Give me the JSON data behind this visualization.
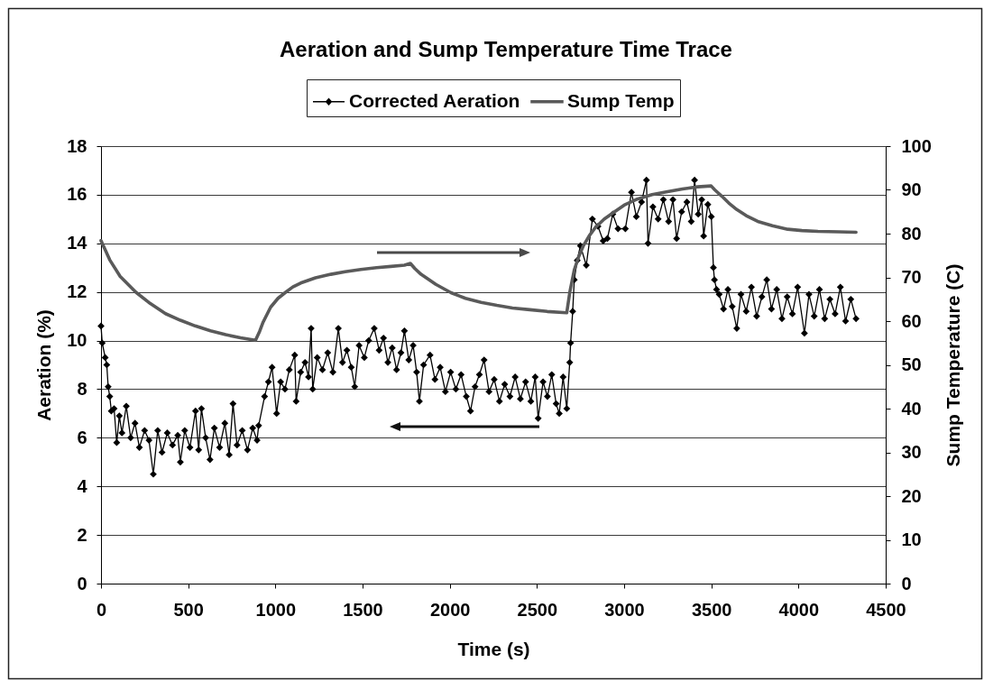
{
  "chart_data": {
    "type": "line",
    "title": "Aeration and Sump Temperature Time Trace",
    "xlabel": "Time (s)",
    "ylabel": "Aeration (%)",
    "y2label": "Sump Temperature (C)",
    "xlim": [
      0,
      4500
    ],
    "xticks": [
      0,
      500,
      1000,
      1500,
      2000,
      2500,
      3000,
      3500,
      4000,
      4500
    ],
    "ylim": [
      0,
      18
    ],
    "yticks": [
      0,
      2,
      4,
      6,
      8,
      10,
      12,
      14,
      16,
      18
    ],
    "y2lim": [
      0,
      100
    ],
    "y2ticks": [
      0,
      10,
      20,
      30,
      40,
      50,
      60,
      70,
      80,
      90,
      100
    ],
    "grid": "y",
    "legend": "top",
    "line_style": "solid",
    "series": [
      {
        "name": "Corrected Aeration",
        "color": "#000000",
        "marker": "diamond",
        "x": [
          0,
          7,
          24,
          33,
          41,
          50,
          59,
          75,
          90,
          105,
          120,
          145,
          170,
          195,
          220,
          250,
          275,
          300,
          325,
          350,
          380,
          410,
          440,
          455,
          480,
          510,
          542,
          560,
          576,
          600,
          625,
          650,
          680,
          710,
          735,
          757,
          780,
          810,
          840,
          870,
          895,
          904,
          938,
          960,
          981,
          1007,
          1030,
          1055,
          1080,
          1111,
          1119,
          1145,
          1170,
          1190,
          1205,
          1214,
          1240,
          1270,
          1300,
          1330,
          1361,
          1385,
          1410,
          1435,
          1455,
          1480,
          1510,
          1535,
          1567,
          1595,
          1620,
          1645,
          1670,
          1695,
          1720,
          1740,
          1765,
          1790,
          1810,
          1826,
          1850,
          1887,
          1915,
          1945,
          1975,
          2005,
          2035,
          2065,
          2095,
          2119,
          2145,
          2170,
          2197,
          2225,
          2255,
          2285,
          2315,
          2345,
          2375,
          2405,
          2435,
          2465,
          2490,
          2507,
          2535,
          2560,
          2585,
          2610,
          2628,
          2650,
          2671,
          2688,
          2693,
          2705,
          2714,
          2731,
          2749,
          2783,
          2818,
          2850,
          2880,
          2904,
          2935,
          2965,
          3007,
          3042,
          3070,
          3100,
          3128,
          3137,
          3165,
          3195,
          3225,
          3255,
          3280,
          3301,
          3330,
          3360,
          3385,
          3404,
          3425,
          3445,
          3456,
          3480,
          3500,
          3512,
          3518,
          3530,
          3545,
          3570,
          3595,
          3620,
          3646,
          3670,
          3700,
          3730,
          3760,
          3790,
          3818,
          3845,
          3875,
          3905,
          3935,
          3965,
          3995,
          4034,
          4060,
          4090,
          4120,
          4150,
          4180,
          4210,
          4240,
          4270,
          4300,
          4330
        ],
        "values": [
          10.6,
          9.9,
          9.3,
          9.0,
          8.1,
          7.7,
          7.1,
          7.2,
          5.8,
          6.9,
          6.2,
          7.3,
          6.0,
          6.6,
          5.6,
          6.3,
          5.9,
          4.5,
          6.3,
          5.4,
          6.2,
          5.7,
          6.1,
          5.0,
          6.3,
          5.6,
          7.1,
          5.5,
          7.2,
          6.0,
          5.1,
          6.4,
          5.6,
          6.6,
          5.3,
          7.4,
          5.7,
          6.3,
          5.5,
          6.4,
          5.9,
          6.5,
          7.7,
          8.3,
          8.9,
          7.0,
          8.3,
          8.0,
          8.8,
          9.4,
          7.5,
          8.7,
          9.1,
          8.5,
          10.5,
          8.0,
          9.3,
          8.8,
          9.5,
          8.7,
          10.5,
          9.1,
          9.6,
          8.9,
          8.1,
          9.8,
          9.3,
          10.0,
          10.5,
          9.6,
          10.1,
          9.1,
          9.7,
          8.8,
          9.5,
          10.4,
          9.2,
          9.8,
          8.7,
          7.5,
          9.0,
          9.4,
          8.4,
          8.9,
          7.9,
          8.7,
          8.0,
          8.6,
          7.7,
          7.1,
          8.1,
          8.6,
          9.2,
          7.9,
          8.4,
          7.5,
          8.2,
          7.7,
          8.5,
          7.6,
          8.3,
          7.5,
          8.5,
          6.8,
          8.3,
          7.7,
          8.6,
          7.4,
          7.0,
          8.5,
          7.2,
          9.1,
          9.9,
          11.2,
          12.5,
          13.3,
          13.9,
          13.1,
          15.0,
          14.7,
          14.1,
          14.2,
          15.2,
          14.6,
          14.6,
          16.1,
          15.1,
          15.7,
          16.6,
          14.0,
          15.5,
          15.0,
          15.8,
          14.9,
          15.8,
          14.2,
          15.3,
          15.7,
          14.9,
          16.6,
          15.2,
          15.8,
          14.3,
          15.6,
          15.1,
          13.0,
          12.5,
          12.1,
          11.9,
          11.3,
          12.1,
          11.4,
          10.5,
          11.9,
          11.2,
          12.2,
          11.0,
          11.8,
          12.5,
          11.3,
          12.1,
          10.9,
          11.8,
          11.1,
          12.2,
          10.3,
          11.9,
          11.0,
          12.1,
          10.9,
          11.7,
          11.1,
          12.2,
          10.8,
          11.7,
          10.9
        ]
      },
      {
        "name": "Sump Temp",
        "color": "#5a5a5a",
        "axis": "y2",
        "x": [
          0,
          50,
          110,
          200,
          283,
          370,
          455,
          540,
          628,
          715,
          800,
          886,
          910,
          930,
          973,
          1015,
          1059,
          1100,
          1145,
          1230,
          1318,
          1400,
          1490,
          1580,
          1662,
          1740,
          1774,
          1800,
          1835,
          1920,
          2007,
          2090,
          2180,
          2270,
          2360,
          2460,
          2559,
          2671,
          2688,
          2714,
          2740,
          2766,
          2800,
          2835,
          2885,
          2938,
          3000,
          3076,
          3160,
          3249,
          3335,
          3421,
          3499,
          3520,
          3559,
          3600,
          3646,
          3700,
          3766,
          3850,
          3938,
          4020,
          4111,
          4230,
          4330
        ],
        "values": [
          78.4,
          74.0,
          70.2,
          66.6,
          64.0,
          61.7,
          60.2,
          58.9,
          57.8,
          56.9,
          56.2,
          55.6,
          57.7,
          59.8,
          63.2,
          65.2,
          66.6,
          67.8,
          68.7,
          69.9,
          70.7,
          71.3,
          71.8,
          72.2,
          72.5,
          72.8,
          73.2,
          72.0,
          70.7,
          68.4,
          66.5,
          65.2,
          64.3,
          63.6,
          63.0,
          62.6,
          62.2,
          61.9,
          66.5,
          71.7,
          74.8,
          77.2,
          79.5,
          81.4,
          83.3,
          84.8,
          86.5,
          87.9,
          88.9,
          89.6,
          90.2,
          90.7,
          90.9,
          90.0,
          88.6,
          87.0,
          85.5,
          84.1,
          82.8,
          81.8,
          81.0,
          80.7,
          80.5,
          80.4,
          80.3
        ]
      }
    ]
  }
}
